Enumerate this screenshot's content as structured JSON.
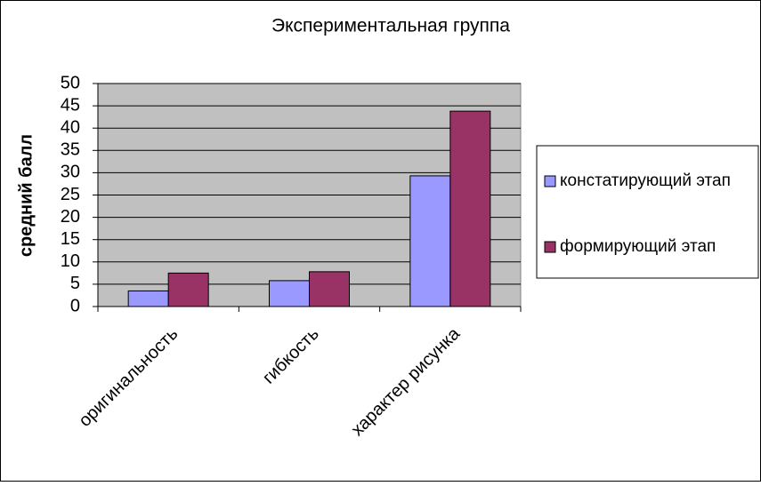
{
  "chart_data": {
    "type": "bar",
    "title": "Экспериментальная группа",
    "y_label": "средний балл",
    "categories": [
      "оригинальность",
      "гибкость",
      "характер рисунка"
    ],
    "series": [
      {
        "name": "констатирующий этап",
        "color": "#9999ff",
        "values": [
          3.5,
          5.8,
          29.3
        ]
      },
      {
        "name": "формирующий этап",
        "color": "#993366",
        "values": [
          7.5,
          7.8,
          43.8
        ]
      }
    ],
    "ylim": [
      0,
      50
    ],
    "yticks": [
      0,
      5,
      10,
      15,
      20,
      25,
      30,
      35,
      40,
      45,
      50
    ],
    "grid": true,
    "legend": "right"
  }
}
